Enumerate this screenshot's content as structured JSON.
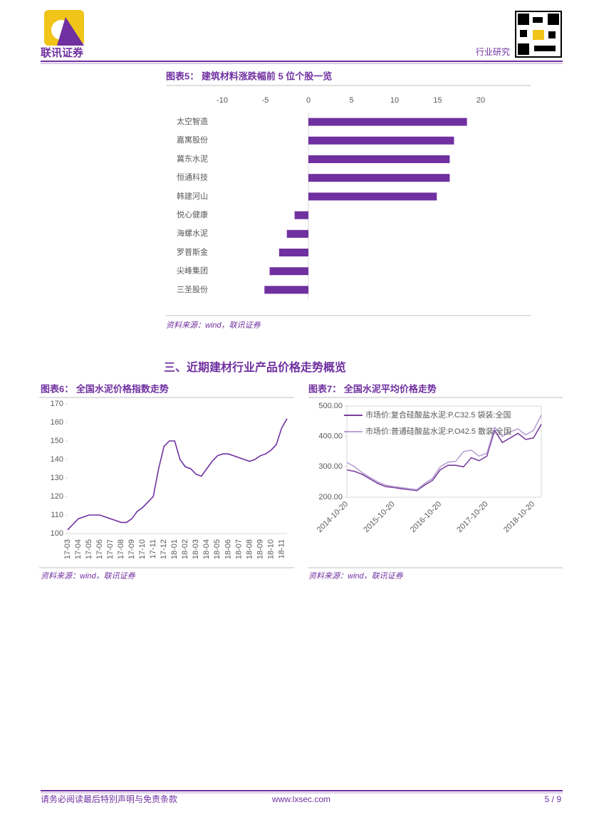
{
  "header": {
    "logo_text": "联讯证券",
    "section": "行业研究"
  },
  "section_heading": "三、近期建材行业产品价格走势概览",
  "chart_data": [
    {
      "type": "bar",
      "orientation": "horizontal",
      "title": "图表5：  建筑材料涨跌幅前 5 位个股一览",
      "source": "资料来源：wind，联讯证券",
      "categories": [
        "太空智造",
        "嘉寓股份",
        "冀东水泥",
        "恒通科技",
        "韩建河山",
        "悦心健康",
        "海螺水泥",
        "罗普斯金",
        "尖峰集团",
        "三圣股份"
      ],
      "values": [
        18.4,
        16.9,
        16.4,
        16.4,
        14.9,
        -1.6,
        -2.5,
        -3.4,
        -4.5,
        -5.1
      ],
      "color": "#7030a0",
      "xlim": [
        -10,
        20
      ],
      "xticks": [
        -10,
        -5,
        0,
        5,
        10,
        15,
        20
      ]
    },
    {
      "type": "line",
      "title": "图表6：  全国水泥价格指数走势",
      "source": "资料来源：wind，联讯证券",
      "categories": [
        "17-03",
        null,
        "17-04",
        null,
        "17-05",
        null,
        "17-06",
        null,
        "17-07",
        null,
        "17-08",
        null,
        "17-09",
        null,
        "17-10",
        null,
        "17-11",
        null,
        "17-12",
        null,
        "18-01",
        null,
        "18-02",
        null,
        "18-03",
        null,
        "18-04",
        null,
        "18-05",
        null,
        "18-06",
        null,
        "18-07",
        null,
        "18-08",
        null,
        "18-09",
        null,
        "18-10",
        null,
        "18-11",
        null
      ],
      "series": [
        {
          "color": "#7030a0",
          "values": [
            102,
            105,
            108,
            109,
            110,
            110,
            110,
            109,
            108,
            107,
            106,
            106,
            108,
            112,
            114,
            117,
            120,
            135,
            147,
            150,
            150,
            140,
            136,
            135,
            132,
            131,
            135,
            139,
            142,
            143,
            143,
            142,
            141,
            140,
            139,
            140,
            142,
            143,
            145,
            148,
            157,
            162
          ]
        }
      ],
      "ylim": [
        100,
        170
      ],
      "yticks": [
        100,
        110,
        120,
        130,
        140,
        150,
        160,
        170
      ]
    },
    {
      "type": "line",
      "title": "图表7：  全国水泥平均价格走势",
      "source": "资料来源：wind，联讯证券",
      "categories": [
        "2014-10-20",
        null,
        null,
        null,
        null,
        null,
        "2015-10-20",
        null,
        null,
        null,
        null,
        null,
        "2016-10-20",
        null,
        null,
        null,
        null,
        null,
        "2017-10-20",
        null,
        null,
        null,
        null,
        null,
        "2018-10-20",
        null
      ],
      "series": [
        {
          "name": "市场价:复合硅酸盐水泥:P.C32.5 袋装:全国",
          "color": "#7b3f9e",
          "values": [
            290,
            285,
            275,
            260,
            245,
            235,
            232,
            228,
            225,
            222,
            240,
            255,
            290,
            305,
            305,
            300,
            330,
            320,
            335,
            420,
            380,
            395,
            410,
            390,
            395,
            440
          ]
        },
        {
          "name": "市场价:普通硅酸盐水泥:P.O42.5 散装:全国",
          "color": "#b9a3d3",
          "values": [
            315,
            300,
            280,
            265,
            250,
            240,
            235,
            232,
            228,
            225,
            245,
            262,
            300,
            315,
            318,
            350,
            355,
            335,
            345,
            430,
            400,
            415,
            425,
            405,
            420,
            470
          ]
        }
      ],
      "ylim": [
        200,
        500
      ],
      "yticks": [
        {
          "value": 200,
          "label": "200.00"
        },
        {
          "value": 300,
          "label": "300.00"
        },
        {
          "value": 400,
          "label": "400.00"
        },
        {
          "value": 500,
          "label": "500.00"
        }
      ]
    }
  ],
  "footer": {
    "disclaimer": "请务必阅读最后特别声明与免责条款",
    "url": "www.lxsec.com",
    "page": "5 / 9"
  }
}
